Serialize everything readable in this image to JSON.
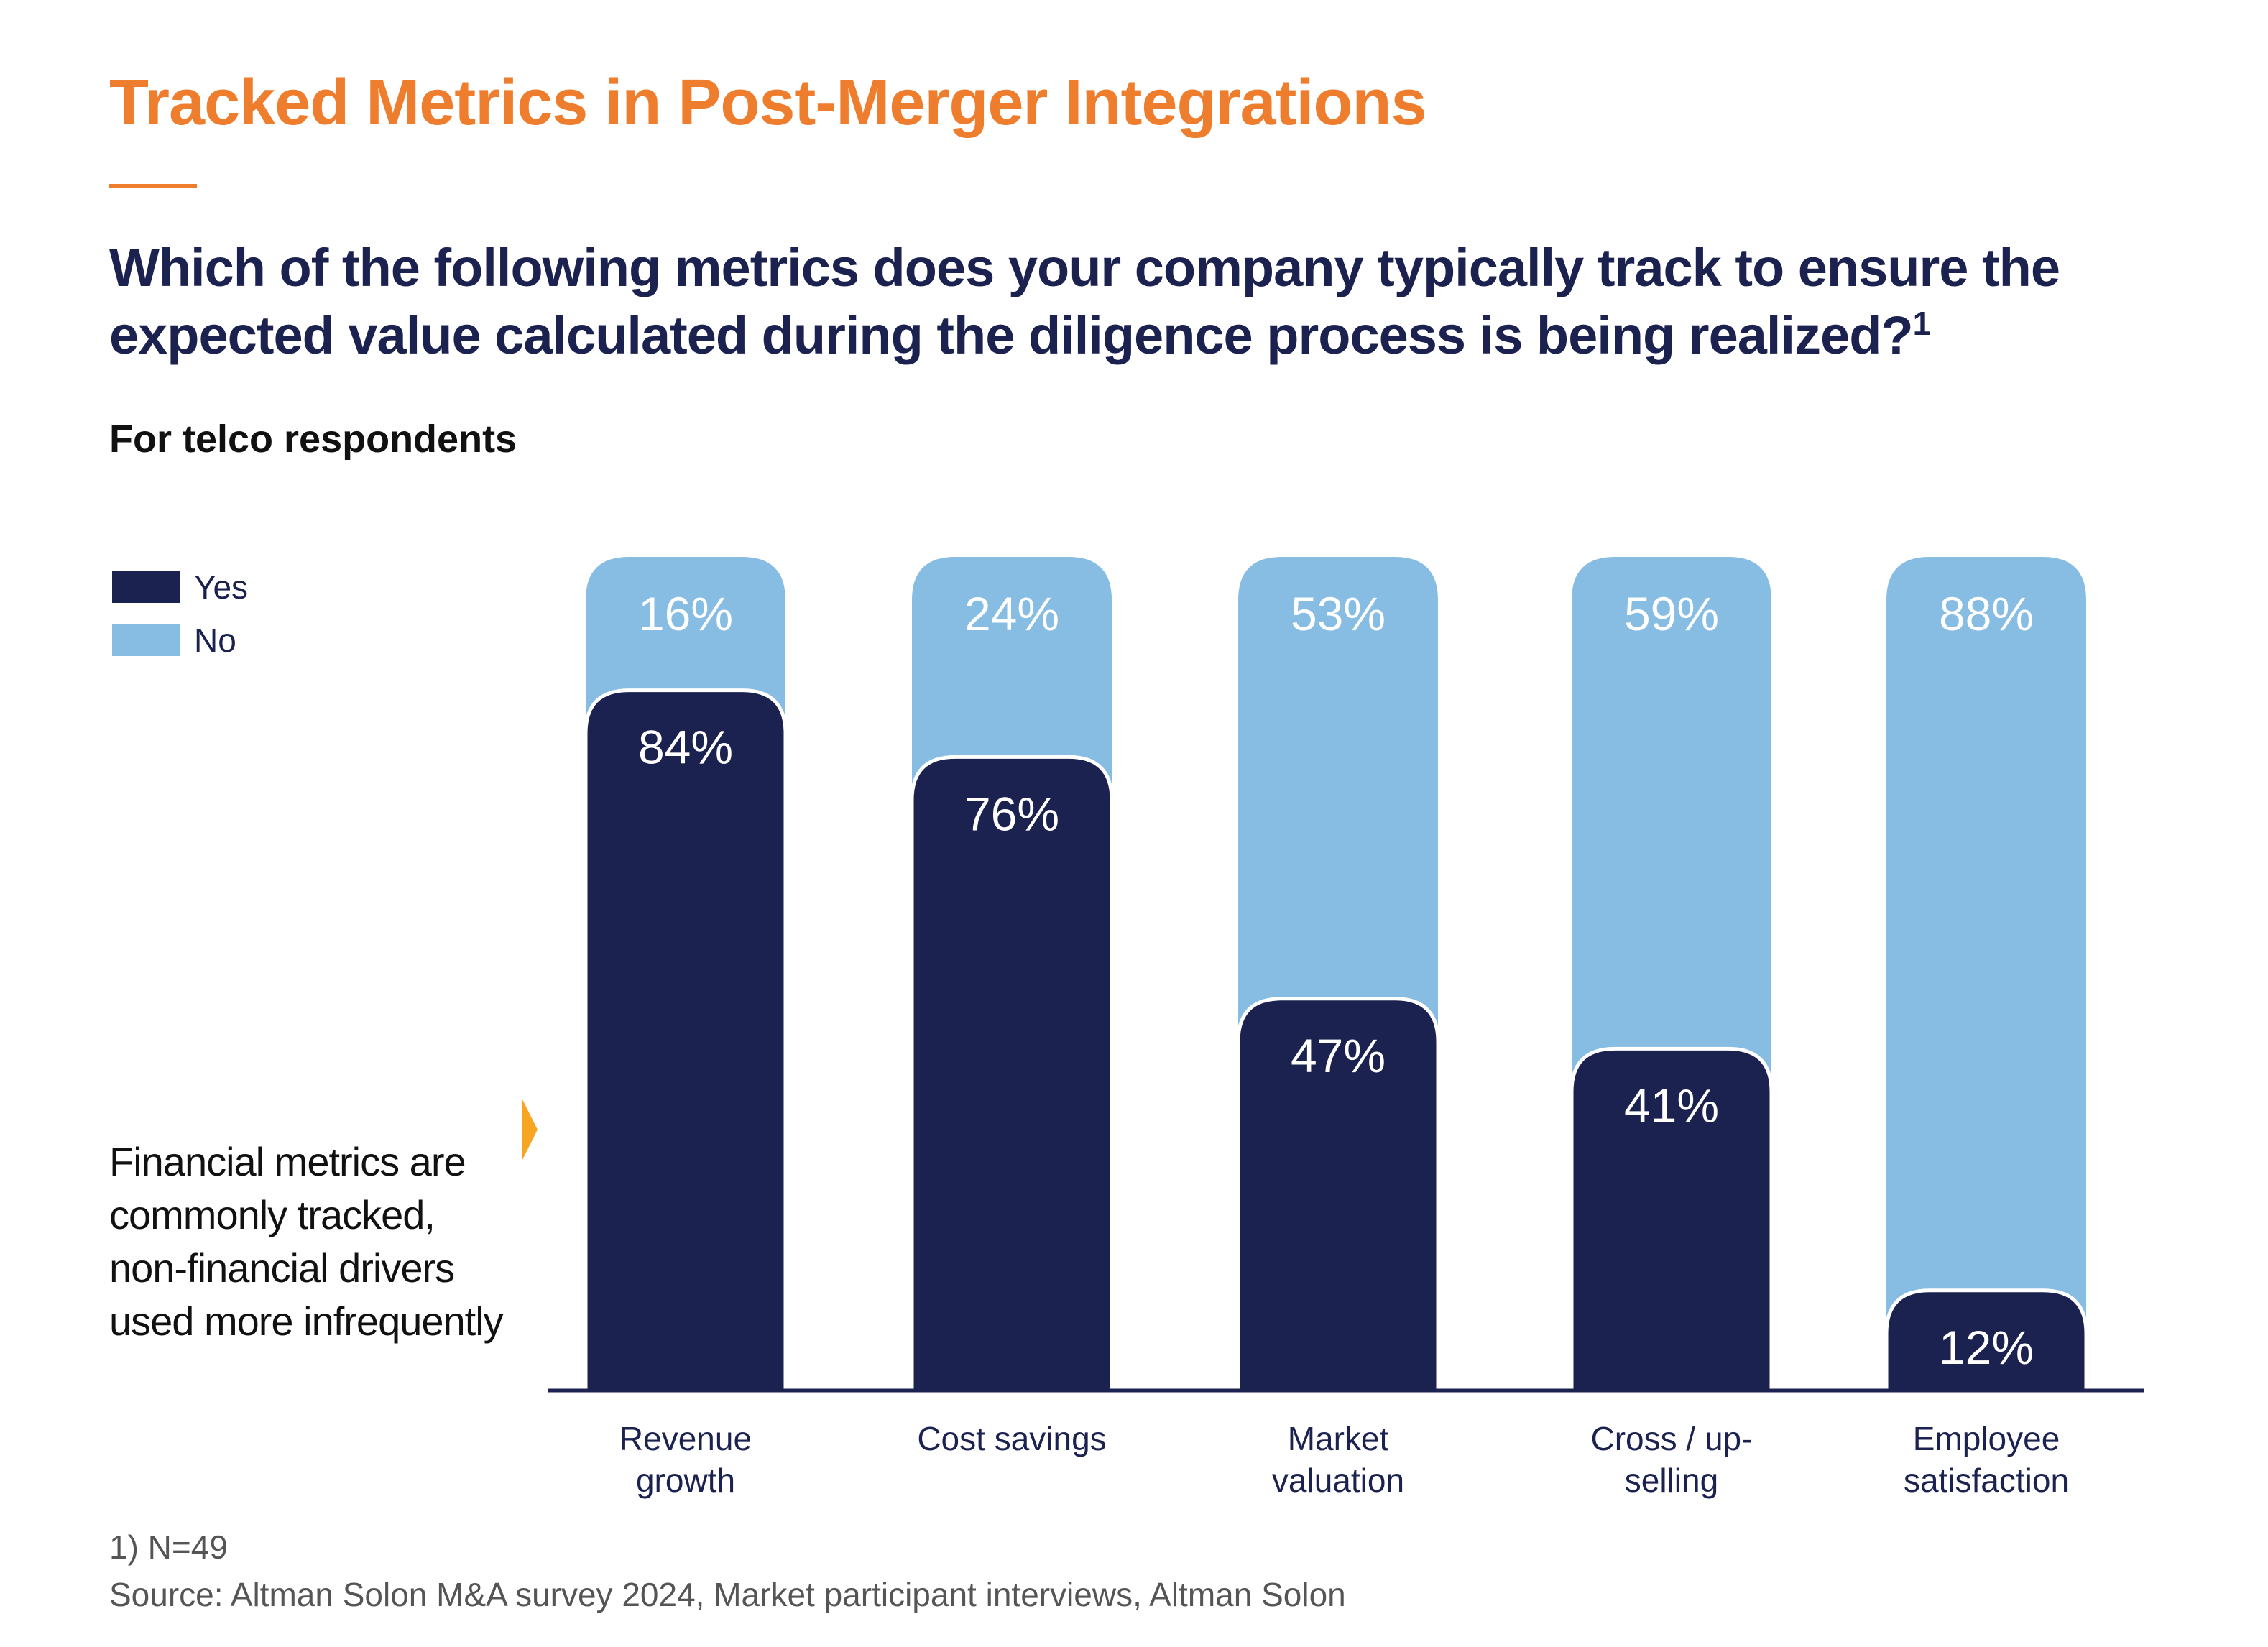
{
  "title": "Tracked Metrics in Post-Merger Integrations",
  "question": "Which of the following metrics does your company typically track to ensure the expected value calculated during the diligence process is being realized?",
  "question_footnote_marker": "1",
  "subtitle": "For telco respondents",
  "callout": "Financial metrics are commonly tracked, non-financial drivers used more infrequently",
  "footnote": "1) N=49",
  "source": "Source: Altman Solon M&A survey 2024, Market participant interviews, Altman Solon",
  "colors": {
    "title": "#ef7d2e",
    "text_dark": "#1c2250",
    "yes": "#1c2250",
    "no": "#87bce3",
    "callout_arrow": "#f6a623"
  },
  "chart_data": {
    "type": "bar",
    "stacked": true,
    "orientation": "vertical",
    "categories": [
      [
        "Revenue",
        "growth"
      ],
      [
        "Cost savings"
      ],
      [
        "Market",
        "valuation"
      ],
      [
        "Cross / up-",
        "selling"
      ],
      [
        "Employee",
        "satisfaction"
      ]
    ],
    "series": [
      {
        "name": "Yes",
        "color": "#1c2250",
        "values": [
          84,
          76,
          47,
          41,
          12
        ],
        "labels": [
          "84%",
          "76%",
          "47%",
          "41%",
          "12%"
        ]
      },
      {
        "name": "No",
        "color": "#87bce3",
        "values": [
          16,
          24,
          53,
          59,
          88
        ],
        "labels": [
          "16%",
          "24%",
          "53%",
          "59%",
          "88%"
        ]
      }
    ],
    "ylim": [
      0,
      100
    ],
    "unit": "%",
    "legend": "top-left",
    "grid": false
  }
}
